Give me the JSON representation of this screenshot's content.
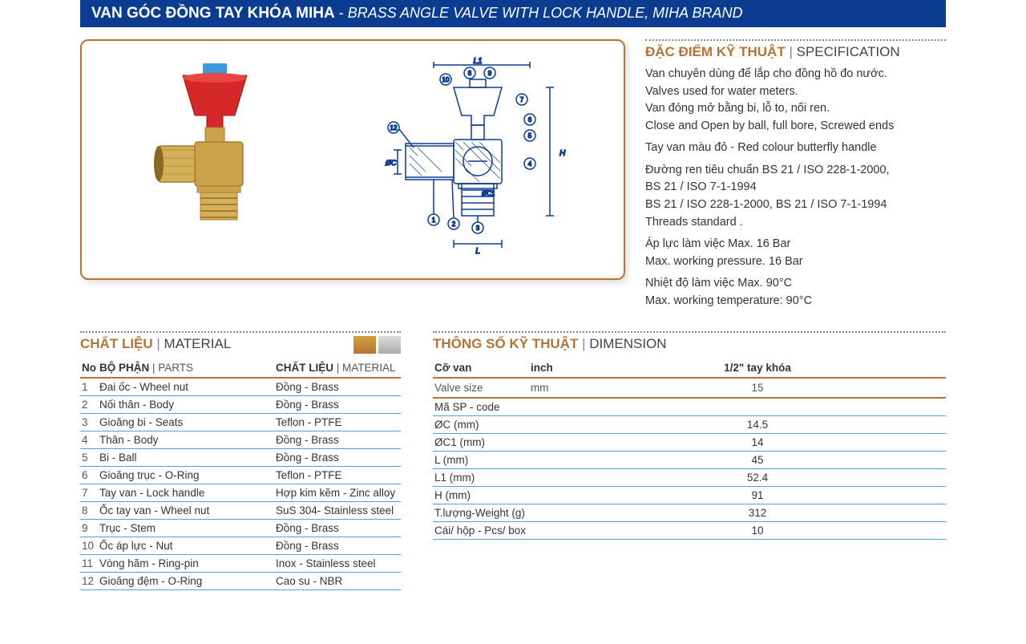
{
  "title": {
    "vn": "VAN GÓC ĐỒNG TAY KHÓA  MIHA",
    "en": "BRASS ANGLE VALVE WITH LOCK HANDLE, MIHA BRAND"
  },
  "spec_section": {
    "heading_vn": "ĐẶC ĐIỂM KỸ THUẬT",
    "heading_en": "SPECIFICATION",
    "groups": [
      [
        "Van chuyên dùng để lắp cho đồng hồ đo nước.",
        "Valves used for water meters.",
        "Van đóng mở bằng bi, lỗ to, nối ren.",
        "Close and Open by ball, full bore, Screwed ends"
      ],
      [
        "Tay van màu đỏ - Red colour butterfly handle"
      ],
      [
        "Đường ren tiêu chuẩn BS 21 / ISO 228-1-2000,",
        "BS 21 / ISO 7-1-1994",
        "BS 21 / ISO 228-1-2000, BS 21 / ISO 7-1-1994",
        "Threads standard ."
      ],
      [
        "Áp lực làm việc Max. 16 Bar",
        "Max. working pressure. 16 Bar"
      ],
      [
        "Nhiệt độ làm việc Max. 90°C",
        "Max. working temperature: 90°C"
      ]
    ]
  },
  "material_section": {
    "heading_vn": "CHẤT LIỆU",
    "heading_en": "MATERIAL",
    "col_no": "No",
    "col_part_vn": "BỘ PHẬN",
    "col_part_en": "PARTS",
    "col_mat_vn": "CHẤT LIỆU",
    "col_mat_en": "MATERIAL",
    "rows": [
      {
        "no": "1",
        "part": "Đai ốc - Wheel nut",
        "mat": "Đồng - Brass"
      },
      {
        "no": "2",
        "part": "Nối thân - Body",
        "mat": "Đồng - Brass"
      },
      {
        "no": "3",
        "part": "Gioăng bi - Seats",
        "mat": "Teflon - PTFE"
      },
      {
        "no": "4",
        "part": "Thân - Body",
        "mat": "Đồng - Brass"
      },
      {
        "no": "5",
        "part": "Bi - Ball",
        "mat": "Đồng - Brass"
      },
      {
        "no": "6",
        "part": "Gioăng trục - O-Ring",
        "mat": "Teflon - PTFE"
      },
      {
        "no": "7",
        "part": "Tay van - Lock handle",
        "mat": "Hợp kim kẽm - Zinc alloy"
      },
      {
        "no": "8",
        "part": "Ốc tay van - Wheel nut",
        "mat": "SuS 304- Stainless steel"
      },
      {
        "no": "9",
        "part": "Trục - Stem",
        "mat": "Đồng - Brass"
      },
      {
        "no": "10",
        "part": "Ốc áp lực - Nut",
        "mat": "Đồng - Brass"
      },
      {
        "no": "11",
        "part": "Vòng hãm - Ring-pin",
        "mat": "Inox - Stainless steel"
      },
      {
        "no": "12",
        "part": "Gioăng đệm - O-Ring",
        "mat": "Cao su - NBR"
      }
    ]
  },
  "dimension_section": {
    "heading_vn": "THÔNG SỐ KỸ THUẬT",
    "heading_en": "DIMENSION",
    "label_size_vn": "Cỡ van",
    "label_size_en": "Valve size",
    "unit_inch": "inch",
    "unit_mm": "mm",
    "col_inch": "1/2\" tay khóa",
    "col_mm": "15",
    "rows": [
      {
        "label": "Mã SP - code",
        "val": ""
      },
      {
        "label": "ØC (mm)",
        "val": "14.5"
      },
      {
        "label": "ØC1 (mm)",
        "val": "14"
      },
      {
        "label": "L (mm)",
        "val": "45"
      },
      {
        "label": "L1 (mm)",
        "val": "52.4"
      },
      {
        "label": "H (mm)",
        "val": "91"
      },
      {
        "label": "T.lượng-Weight (g)",
        "val": "312"
      },
      {
        "label": "Cái/ hộp - Pcs/ box",
        "val": "10"
      }
    ]
  },
  "colors": {
    "brand_blue": "#0a3d91",
    "brass": "#b87333",
    "row_line": "#4da0d8",
    "handle_red": "#d62828",
    "handle_cap": "#3a9bdc",
    "brass_body": "#c9a24a",
    "brass_dark": "#a67c2e",
    "diagram_line": "#0a3d91"
  }
}
